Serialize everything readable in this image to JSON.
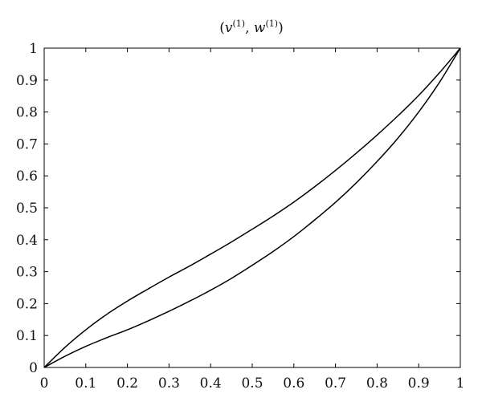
{
  "chart_data": {
    "type": "line",
    "title": {
      "open": "(",
      "v": "v",
      "v_sup": "(1)",
      "sep": ", ",
      "w": "w",
      "w_sup": "(1)",
      "close": ")"
    },
    "xlabel": "",
    "ylabel": "",
    "xlim": [
      0,
      1
    ],
    "ylim": [
      0,
      1
    ],
    "grid": false,
    "legend": "none",
    "x_ticks": [
      "0",
      "0.1",
      "0.2",
      "0.3",
      "0.4",
      "0.5",
      "0.6",
      "0.7",
      "0.8",
      "0.9",
      "1"
    ],
    "y_ticks": [
      "0",
      "0.1",
      "0.2",
      "0.3",
      "0.4",
      "0.5",
      "0.6",
      "0.7",
      "0.8",
      "0.9",
      "1"
    ],
    "line_color": "#000000",
    "series": [
      {
        "x": [
          0,
          0.05,
          0.1,
          0.15,
          0.2,
          0.25,
          0.3,
          0.35,
          0.4,
          0.45,
          0.5,
          0.55,
          0.6,
          0.65,
          0.7,
          0.75,
          0.8,
          0.85,
          0.9,
          0.95,
          1
        ],
        "y": [
          0,
          0.063,
          0.118,
          0.166,
          0.208,
          0.246,
          0.283,
          0.318,
          0.355,
          0.393,
          0.433,
          0.474,
          0.518,
          0.566,
          0.617,
          0.671,
          0.728,
          0.788,
          0.852,
          0.923,
          1
        ]
      },
      {
        "x": [
          0,
          0.05,
          0.1,
          0.15,
          0.2,
          0.25,
          0.3,
          0.35,
          0.4,
          0.45,
          0.5,
          0.55,
          0.6,
          0.65,
          0.7,
          0.75,
          0.8,
          0.85,
          0.9,
          0.95,
          1
        ],
        "y": [
          0,
          0.035,
          0.066,
          0.093,
          0.118,
          0.146,
          0.176,
          0.208,
          0.242,
          0.279,
          0.32,
          0.363,
          0.41,
          0.462,
          0.517,
          0.578,
          0.645,
          0.718,
          0.8,
          0.893,
          1
        ]
      }
    ]
  }
}
